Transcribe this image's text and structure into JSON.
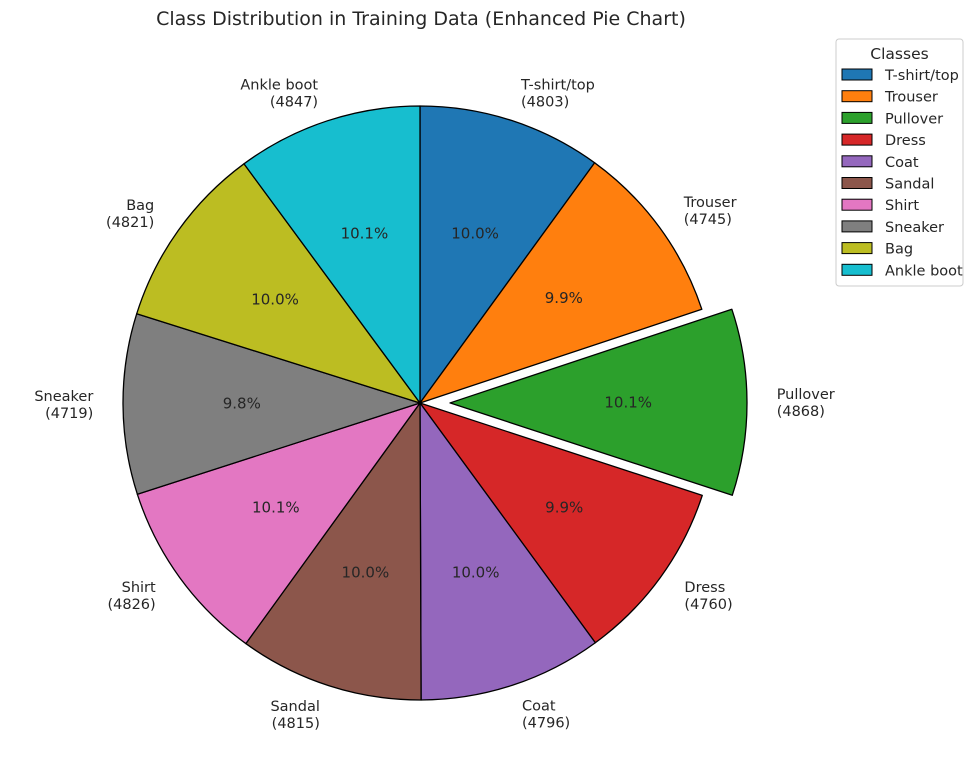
{
  "chart_data": {
    "type": "pie",
    "title": "Class Distribution in Training Data (Enhanced Pie Chart)",
    "start_angle_deg": 90,
    "direction": "clockwise",
    "legend": {
      "title": "Classes",
      "placement": "upper-right"
    },
    "slices": [
      {
        "label": "T-shirt/top",
        "count": 4803,
        "count_label": "(4803)",
        "pct_label": "10.0%",
        "color": "#1f77b4",
        "exploded": false
      },
      {
        "label": "Trouser",
        "count": 4745,
        "count_label": "(4745)",
        "pct_label": "9.9%",
        "color": "#ff7f0e",
        "exploded": false
      },
      {
        "label": "Pullover",
        "count": 4868,
        "count_label": "(4868)",
        "pct_label": "10.1%",
        "color": "#2ca02c",
        "exploded": true
      },
      {
        "label": "Dress",
        "count": 4760,
        "count_label": "(4760)",
        "pct_label": "9.9%",
        "color": "#d62728",
        "exploded": false
      },
      {
        "label": "Coat",
        "count": 4796,
        "count_label": "(4796)",
        "pct_label": "10.0%",
        "color": "#9467bd",
        "exploded": false
      },
      {
        "label": "Sandal",
        "count": 4815,
        "count_label": "(4815)",
        "pct_label": "10.0%",
        "color": "#8c564b",
        "exploded": false
      },
      {
        "label": "Shirt",
        "count": 4826,
        "count_label": "(4826)",
        "pct_label": "10.1%",
        "color": "#e377c2",
        "exploded": false
      },
      {
        "label": "Sneaker",
        "count": 4719,
        "count_label": "(4719)",
        "pct_label": "9.8%",
        "color": "#7f7f7f",
        "exploded": false
      },
      {
        "label": "Bag",
        "count": 4821,
        "count_label": "(4821)",
        "pct_label": "10.0%",
        "color": "#bcbd22",
        "exploded": false
      },
      {
        "label": "Ankle boot",
        "count": 4847,
        "count_label": "(4847)",
        "pct_label": "10.1%",
        "color": "#17becf",
        "exploded": false
      }
    ]
  }
}
